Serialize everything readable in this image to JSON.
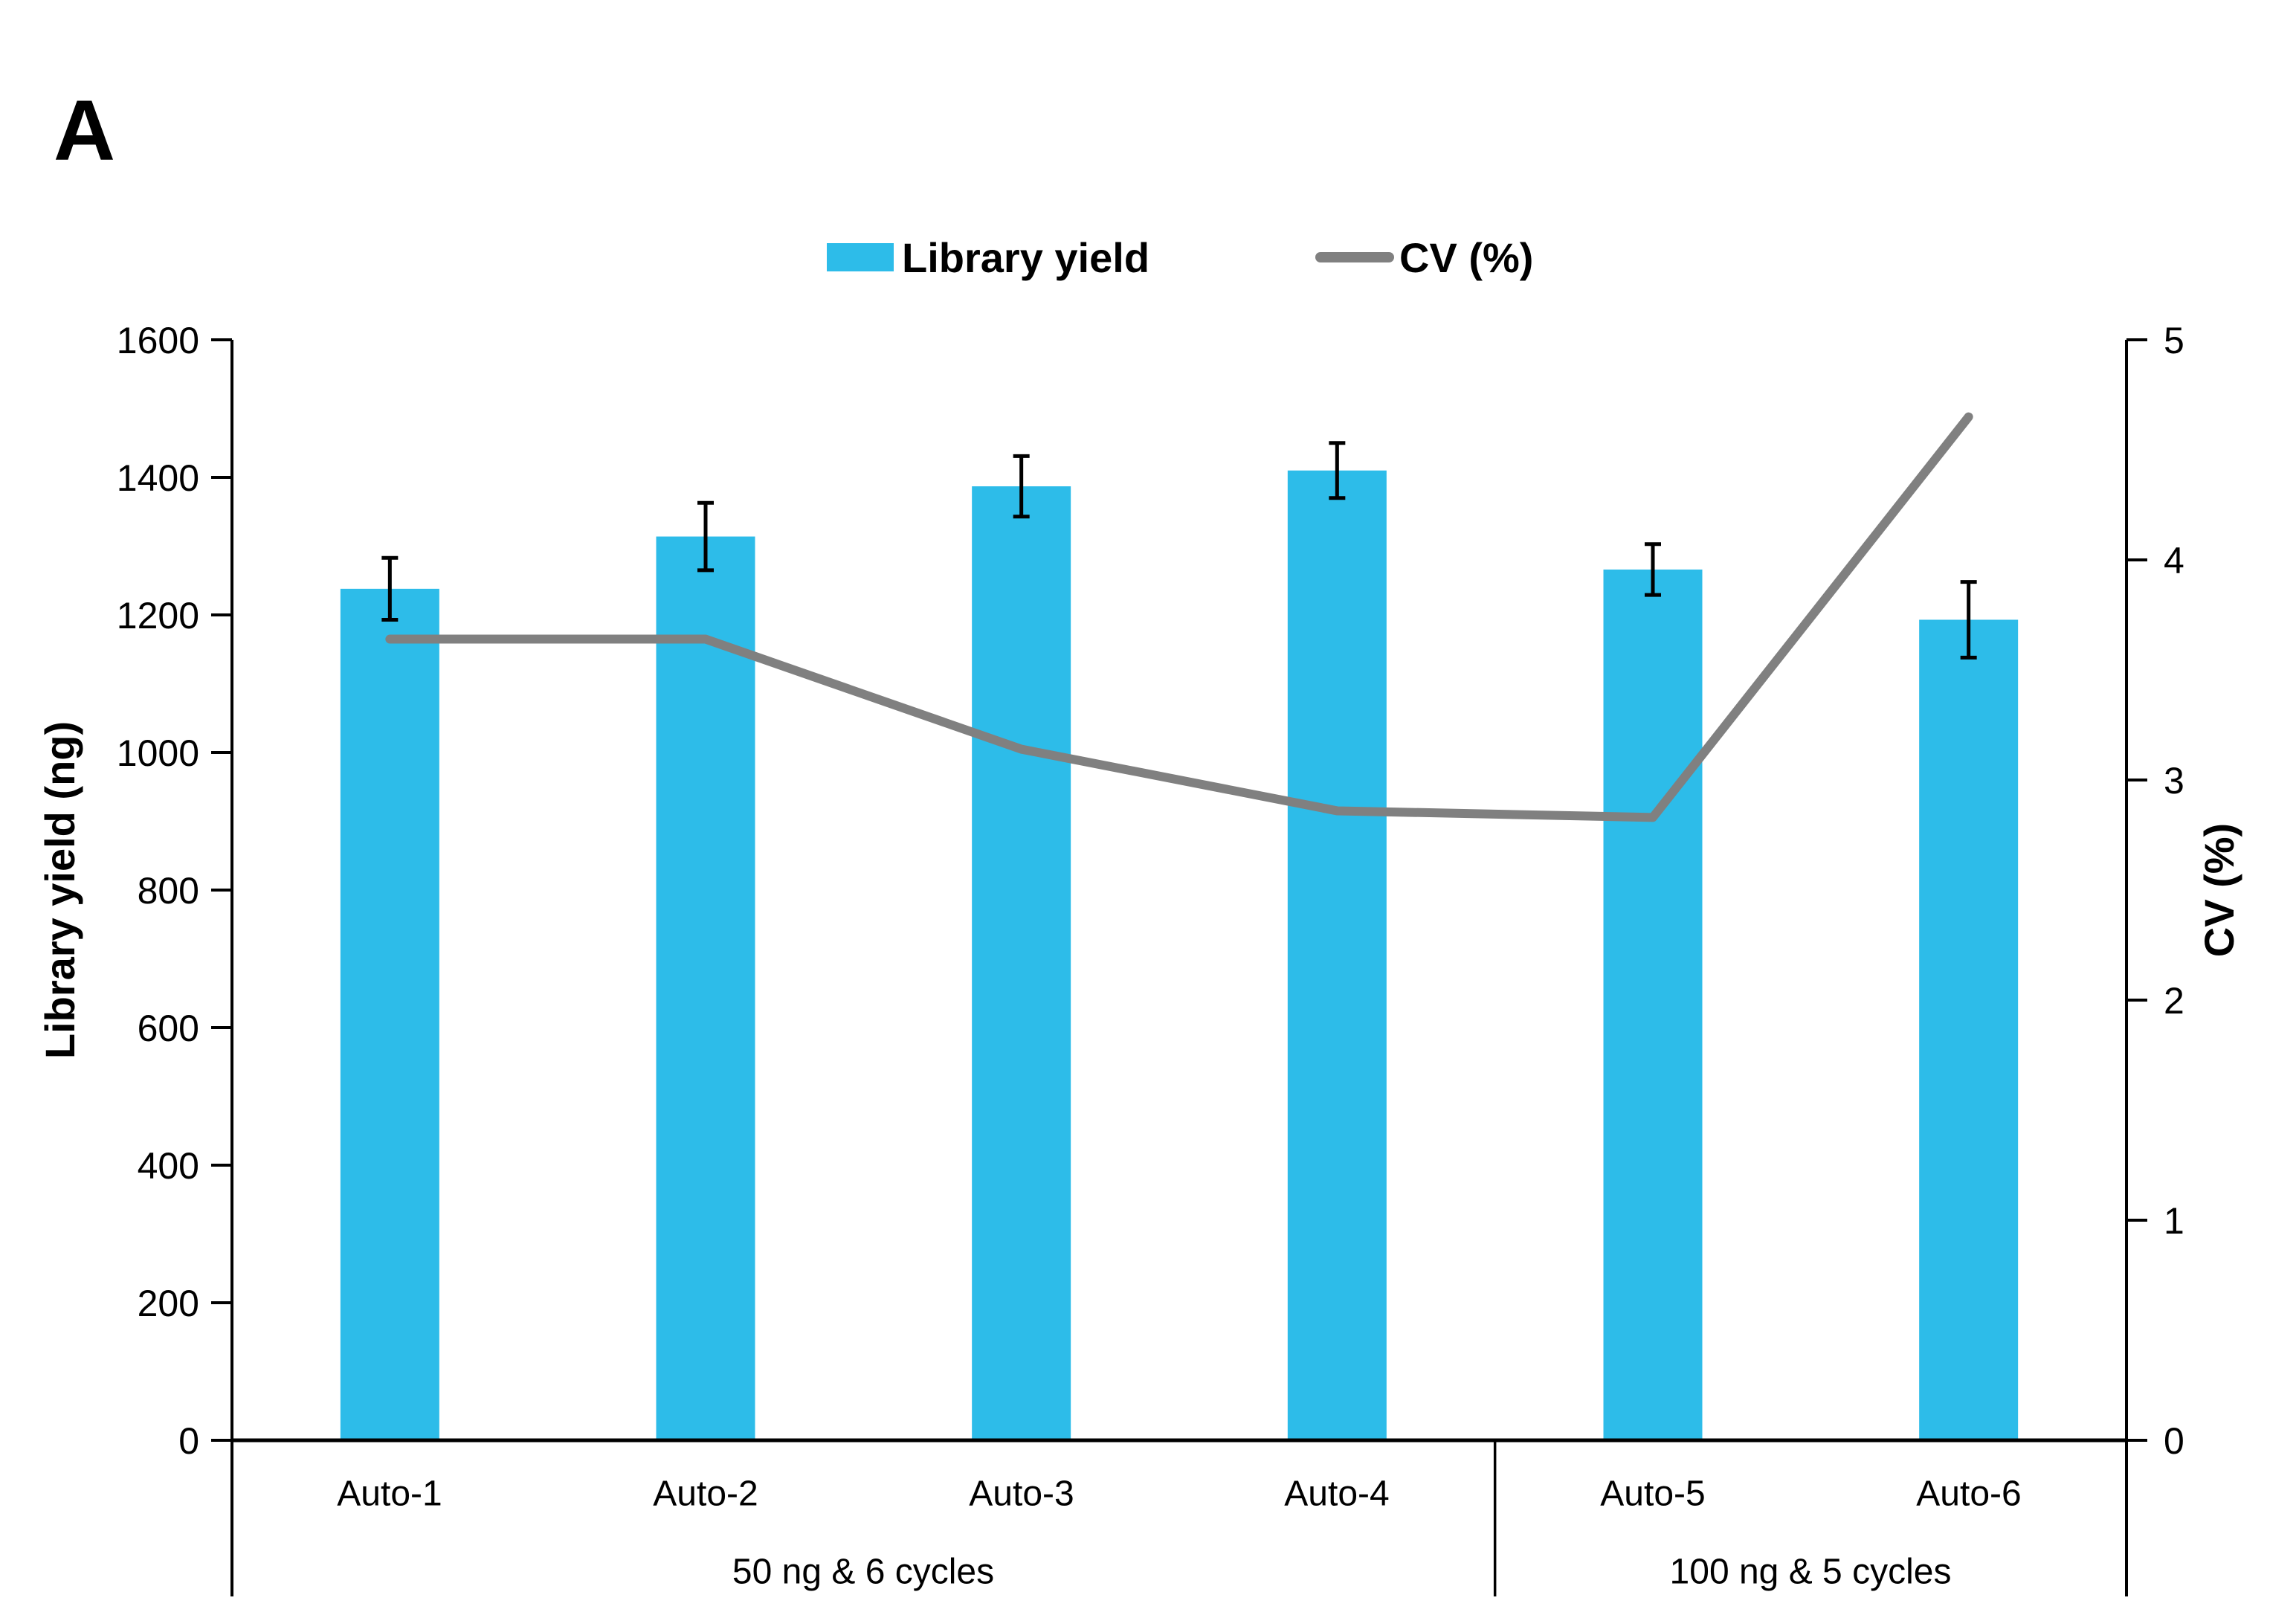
{
  "panel_label": "A",
  "legend": {
    "bar_label": "Library yield",
    "line_label": "CV (%)"
  },
  "axes": {
    "left_title": "Library yield (ng)",
    "right_title": "CV (%)"
  },
  "colors": {
    "bar": "#2DBCE9",
    "line": "#808080",
    "axis": "#000000",
    "error_bar": "#000000"
  },
  "chart_data": {
    "type": "bar",
    "subtype": "bar-with-secondary-line",
    "title": "",
    "categories": [
      "Auto-1",
      "Auto-2",
      "Auto-3",
      "Auto-4",
      "Auto-5",
      "Auto-6"
    ],
    "series": [
      {
        "name": "Library yield",
        "type": "bar",
        "axis": "left",
        "values": [
          1238,
          1314,
          1387,
          1410,
          1266,
          1193
        ],
        "error_bars": [
          45,
          49,
          44,
          40,
          37,
          55
        ]
      },
      {
        "name": "CV (%)",
        "type": "line",
        "axis": "right",
        "values": [
          3.64,
          3.64,
          3.14,
          2.86,
          2.83,
          4.65
        ]
      }
    ],
    "left_axis": {
      "label": "Library yield (ng)",
      "range": [
        0,
        1600
      ],
      "tick_step": 200
    },
    "right_axis": {
      "label": "CV (%)",
      "range": [
        0,
        5
      ],
      "tick_step": 1
    },
    "group_spans": [
      {
        "label": "50 ng & 6 cycles",
        "from": 0,
        "to": 3
      },
      {
        "label": "100 ng & 5 cycles",
        "from": 4,
        "to": 5
      }
    ],
    "grid": false,
    "legend_position": "top-center"
  }
}
